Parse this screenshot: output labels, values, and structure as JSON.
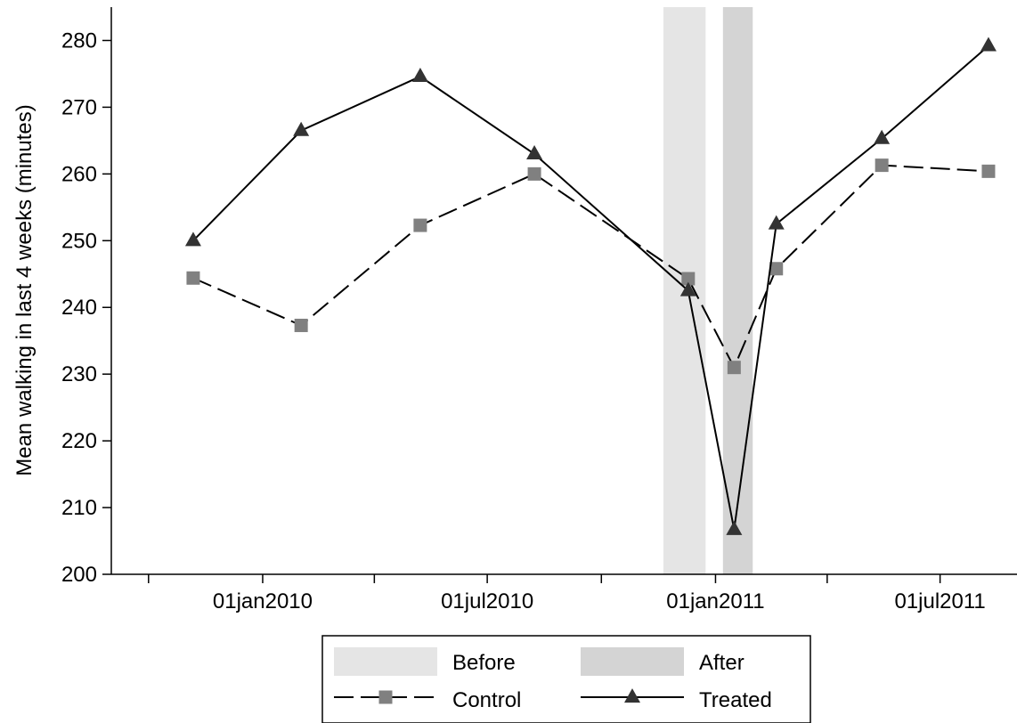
{
  "chart_data": {
    "type": "line",
    "title": "",
    "xlabel": "",
    "ylabel": "Mean walking in last 4 weeks (minutes)",
    "ylim": [
      200,
      285
    ],
    "y_ticks": [
      200,
      210,
      220,
      230,
      240,
      250,
      260,
      270,
      280
    ],
    "xlim": [
      "2009-09-01",
      "2011-09-01"
    ],
    "x_ticks": [
      "2009-10-01",
      "2010-01-01",
      "2010-04-01",
      "2010-07-01",
      "2010-10-01",
      "2011-01-01",
      "2011-04-01",
      "2011-07-01",
      "2011-10-01"
    ],
    "x_tick_labels": [
      "",
      "01jan2010",
      "",
      "01jul2010",
      "",
      "01jan2011",
      "",
      "01jul2011",
      ""
    ],
    "grid": false,
    "legend_position": "bottom",
    "shaded_periods": [
      {
        "name": "Before",
        "start": "2010-11-20",
        "end": "2010-12-24",
        "color": "#e5e5e5"
      },
      {
        "name": "After",
        "start": "2011-01-07",
        "end": "2011-01-31",
        "color": "#d4d4d4"
      }
    ],
    "series": [
      {
        "name": "Control",
        "marker": "square",
        "line_style": "dashed",
        "color": "#808080",
        "x": [
          "2009-11-06",
          "2010-02-01",
          "2010-05-08",
          "2010-08-08",
          "2010-12-10",
          "2011-01-16",
          "2011-02-19",
          "2011-05-15",
          "2011-08-09"
        ],
        "values": [
          244.4,
          237.3,
          252.3,
          260.0,
          244.3,
          231.0,
          245.8,
          261.3,
          260.4
        ]
      },
      {
        "name": "Treated",
        "marker": "triangle",
        "line_style": "solid",
        "color": "#333333",
        "x": [
          "2009-11-06",
          "2010-02-01",
          "2010-05-08",
          "2010-08-08",
          "2010-12-10",
          "2011-01-16",
          "2011-02-19",
          "2011-05-15",
          "2011-08-09"
        ],
        "values": [
          250.0,
          266.5,
          274.6,
          263.0,
          242.5,
          206.7,
          252.5,
          265.3,
          279.2
        ]
      }
    ]
  }
}
